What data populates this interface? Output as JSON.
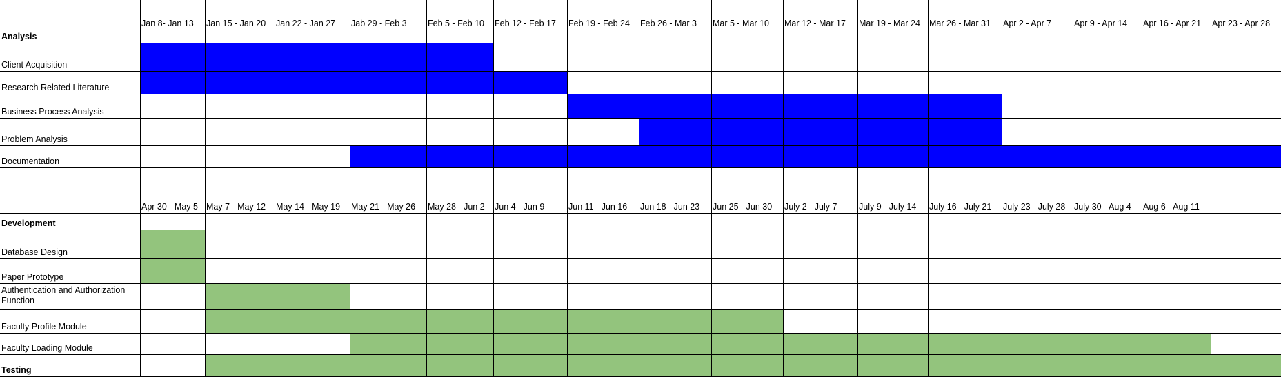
{
  "colors": {
    "analysis_bar": "#0000ff",
    "development_bar": "#93c47d",
    "grid": "#000000"
  },
  "sections": [
    {
      "header": "Analysis",
      "weeks": [
        "Jan 8- Jan 13",
        "Jan 15 - Jan 20",
        "Jan 22 - Jan 27",
        "Jab 29 - Feb 3",
        "Feb 5 - Feb 10",
        "Feb 12 - Feb 17",
        "Feb 19 - Feb 24",
        "Feb 26 - Mar 3",
        "Mar 5 - Mar 10",
        "Mar 12 - Mar 17",
        "Mar 19 - Mar 24",
        "Mar 26 - Mar 31",
        "Apr 2 - Apr 7",
        "Apr 9 - Apr 14",
        "Apr 16 - Apr 21",
        "Apr 23 - Apr 28"
      ],
      "color_key": "analysis_bar",
      "tasks": [
        {
          "name": "Client Acquisition",
          "start_week": 1,
          "end_week": 5
        },
        {
          "name": "Research Related Literature",
          "start_week": 1,
          "end_week": 6
        },
        {
          "name": "Business Process Analysis",
          "start_week": 7,
          "end_week": 12
        },
        {
          "name": "Problem Analysis",
          "start_week": 8,
          "end_week": 12
        },
        {
          "name": "Documentation",
          "start_week": 4,
          "end_week": 16
        }
      ]
    },
    {
      "header": "Development",
      "weeks": [
        "Apr 30 - May 5",
        "May 7 - May 12",
        "May 14 - May 19",
        "May 21 - May 26",
        "May 28 - Jun 2",
        "Jun 4 - Jun 9",
        "Jun 11 - Jun 16",
        "Jun 18 - Jun 23",
        "Jun 25 - Jun 30",
        "July 2 - July 7",
        "July 9 - July 14",
        "July 16 - July 21",
        "July 23 - July 28",
        "July 30 - Aug 4",
        "Aug 6 - Aug 11",
        ""
      ],
      "color_key": "development_bar",
      "tasks": [
        {
          "name": "Database Design",
          "start_week": 1,
          "end_week": 1
        },
        {
          "name": "Paper Prototype",
          "start_week": 1,
          "end_week": 1
        },
        {
          "name": "Authentication and Authorization Function",
          "start_week": 2,
          "end_week": 3
        },
        {
          "name": "Faculty Profile Module",
          "start_week": 2,
          "end_week": 9
        },
        {
          "name": "Faculty Loading Module",
          "start_week": 4,
          "end_week": 15
        }
      ],
      "footer": "Testing",
      "footer_start_week": 2,
      "footer_end_week": 16
    }
  ]
}
